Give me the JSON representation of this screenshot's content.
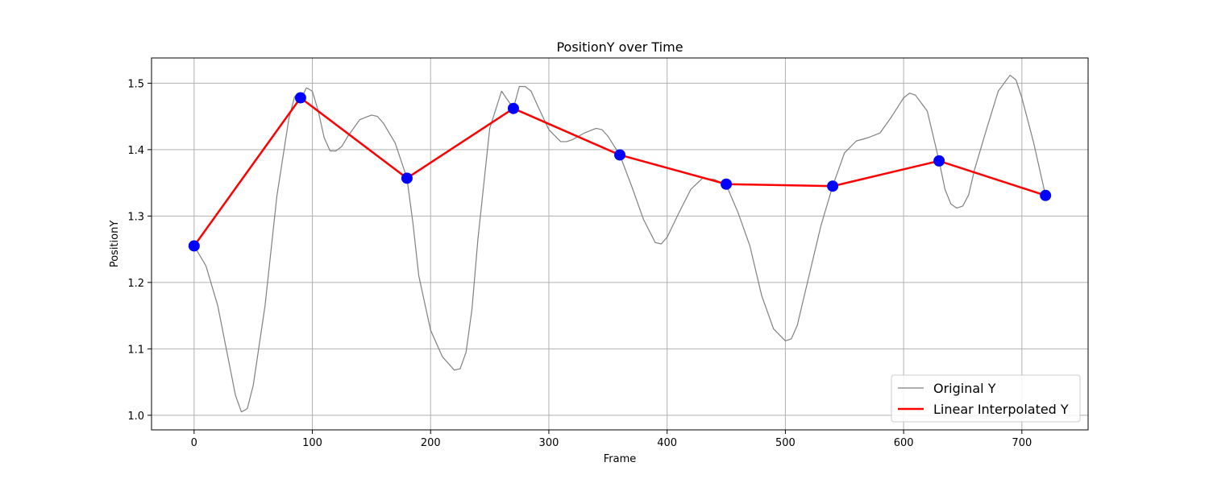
{
  "chart_data": {
    "type": "line",
    "title": "PositionY over Time",
    "xlabel": "Frame",
    "ylabel": "PositionY",
    "xlim": [
      -36,
      756
    ],
    "ylim": [
      0.978,
      1.538
    ],
    "xticks": [
      0,
      100,
      200,
      300,
      400,
      500,
      600,
      700
    ],
    "yticks": [
      1.0,
      1.1,
      1.2,
      1.3,
      1.4,
      1.5
    ],
    "ytick_labels": [
      "1.0",
      "1.1",
      "1.2",
      "1.3",
      "1.4",
      "1.5"
    ],
    "grid": true,
    "legend_position": "lower-right",
    "series": [
      {
        "name": "Original Y",
        "color": "#808080",
        "style": "line",
        "x": [
          0,
          10,
          20,
          30,
          35,
          40,
          45,
          50,
          60,
          70,
          80,
          85,
          90,
          95,
          100,
          105,
          110,
          115,
          120,
          125,
          130,
          140,
          150,
          155,
          160,
          170,
          180,
          185,
          190,
          200,
          210,
          220,
          225,
          230,
          235,
          240,
          250,
          260,
          270,
          275,
          280,
          285,
          290,
          300,
          310,
          315,
          320,
          330,
          340,
          345,
          350,
          360,
          370,
          380,
          390,
          395,
          400,
          410,
          420,
          430,
          440,
          450,
          460,
          470,
          480,
          490,
          500,
          505,
          510,
          520,
          530,
          540,
          550,
          560,
          570,
          580,
          590,
          600,
          605,
          610,
          620,
          630,
          635,
          640,
          645,
          650,
          655,
          660,
          670,
          680,
          690,
          695,
          700,
          710,
          720
        ],
        "values": [
          1.255,
          1.225,
          1.165,
          1.075,
          1.03,
          1.005,
          1.01,
          1.045,
          1.165,
          1.33,
          1.445,
          1.48,
          1.475,
          1.493,
          1.488,
          1.458,
          1.418,
          1.398,
          1.398,
          1.405,
          1.42,
          1.445,
          1.452,
          1.45,
          1.44,
          1.41,
          1.357,
          1.29,
          1.21,
          1.128,
          1.088,
          1.068,
          1.07,
          1.095,
          1.16,
          1.265,
          1.432,
          1.488,
          1.462,
          1.495,
          1.495,
          1.488,
          1.468,
          1.43,
          1.412,
          1.412,
          1.415,
          1.425,
          1.432,
          1.43,
          1.42,
          1.392,
          1.345,
          1.295,
          1.26,
          1.258,
          1.268,
          1.305,
          1.34,
          1.357,
          1.355,
          1.347,
          1.305,
          1.255,
          1.18,
          1.13,
          1.112,
          1.115,
          1.135,
          1.21,
          1.285,
          1.345,
          1.395,
          1.413,
          1.418,
          1.425,
          1.45,
          1.478,
          1.485,
          1.482,
          1.458,
          1.383,
          1.34,
          1.318,
          1.312,
          1.315,
          1.332,
          1.37,
          1.43,
          1.488,
          1.512,
          1.505,
          1.478,
          1.41,
          1.331
        ]
      },
      {
        "name": "Linear Interpolated Y",
        "color": "#ff0000",
        "style": "line",
        "x": [
          0,
          90,
          180,
          270,
          360,
          450,
          540,
          630,
          720
        ],
        "values": [
          1.255,
          1.478,
          1.357,
          1.462,
          1.392,
          1.348,
          1.345,
          1.383,
          1.331
        ]
      },
      {
        "name": "",
        "color": "#0000ff",
        "style": "markers",
        "x": [
          0,
          90,
          180,
          270,
          360,
          450,
          540,
          630,
          720
        ],
        "values": [
          1.255,
          1.478,
          1.357,
          1.462,
          1.392,
          1.348,
          1.345,
          1.383,
          1.331
        ]
      }
    ]
  }
}
